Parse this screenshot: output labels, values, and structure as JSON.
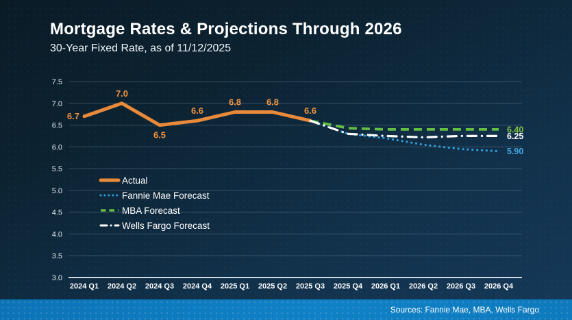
{
  "header": {
    "title": "Mortgage Rates & Projections Through 2026",
    "subtitle": "30-Year Fixed Rate, as of 11/12/2025"
  },
  "footer": {
    "sources": "Sources: Fannie Mae, MBA, Wells Fargo"
  },
  "colors": {
    "background_top": "#0A1B26",
    "background_bottom": "#16395A",
    "sources_bar_blue": "#1081C6",
    "gridline": "rgba(170,195,215,0.28)",
    "axis_baseline": "#CFDAE2",
    "tick_text": "#E4EBF1"
  },
  "chart_data": {
    "type": "line",
    "title": "Mortgage Rates & Projections Through 2026",
    "subtitle": "30-Year Fixed Rate, as of 11/12/2025",
    "categories": [
      "2024 Q1",
      "2024 Q2",
      "2024 Q3",
      "2024 Q4",
      "2025 Q1",
      "2025 Q2",
      "2025 Q3",
      "2025 Q4",
      "2026 Q1",
      "2026 Q2",
      "2026 Q3",
      "2026 Q4"
    ],
    "ylim": [
      3.0,
      7.5
    ],
    "ytick_step": 0.5,
    "grid": true,
    "legend_position": "inside-left",
    "series": [
      {
        "name": "Actual",
        "slug": "actual",
        "color": "#E98A3B",
        "style": "solid",
        "values": [
          6.7,
          7.0,
          6.5,
          6.6,
          6.8,
          6.8,
          6.6,
          null,
          null,
          null,
          null,
          null
        ],
        "point_labels": [
          "6.7",
          "7.0",
          "6.5",
          "6.6",
          "6.8",
          "6.8",
          "6.6"
        ],
        "label_positions": [
          "left",
          "above",
          "below",
          "above",
          "above",
          "above",
          "above"
        ],
        "label_color": "#F0923E"
      },
      {
        "name": "Fannie Mae Forecast",
        "slug": "fannie-mae-forecast",
        "color": "#2F9CD9",
        "style": "dotted",
        "values": [
          null,
          null,
          null,
          null,
          null,
          null,
          6.6,
          6.3,
          6.2,
          6.05,
          5.95,
          5.9
        ],
        "end_label": "5.90",
        "end_label_color": "#41A8E1"
      },
      {
        "name": "MBA Forecast",
        "slug": "mba-forecast",
        "color": "#63BE43",
        "style": "dashed",
        "values": [
          null,
          null,
          null,
          null,
          null,
          null,
          6.6,
          6.43,
          6.4,
          6.4,
          6.4,
          6.4
        ],
        "end_label": "6.40",
        "end_label_color": "#7EC142"
      },
      {
        "name": "Wells Fargo Forecast",
        "slug": "wells-fargo-forecast",
        "color": "#FFFFFF",
        "style": "dashdot",
        "values": [
          null,
          null,
          null,
          null,
          null,
          null,
          6.6,
          6.3,
          6.25,
          6.22,
          6.25,
          6.25
        ],
        "end_label": "6.25",
        "end_label_color": "#FFFFFF"
      }
    ]
  }
}
